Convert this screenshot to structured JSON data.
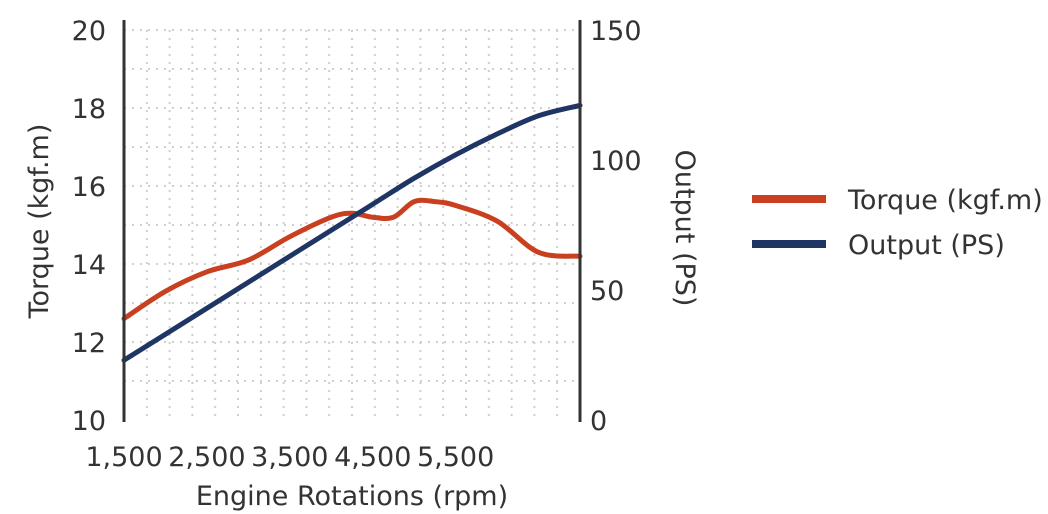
{
  "chart_data": {
    "type": "line",
    "xlabel": "Engine Rotations (rpm)",
    "ylabel_left": "Torque (kgf.m)",
    "ylabel_right": "Output (PS)",
    "xlim": [
      1500,
      7000
    ],
    "ylim_left": [
      10,
      20
    ],
    "ylim_right": [
      0,
      150
    ],
    "x_ticks": [
      1500,
      2500,
      3500,
      4500,
      5500
    ],
    "x_tick_labels": [
      "1,500",
      "2,500",
      "3,500",
      "4,500",
      "5,500"
    ],
    "y_left_ticks": [
      10,
      12,
      14,
      16,
      18,
      20
    ],
    "y_left_tick_labels": [
      "10",
      "12",
      "14",
      "16",
      "18",
      "20"
    ],
    "y_right_ticks": [
      0,
      50,
      100,
      150
    ],
    "y_right_tick_labels": [
      "0",
      "50",
      "100",
      "150"
    ],
    "grid": true,
    "legend_position": "right",
    "series": [
      {
        "name": "Torque (kgf.m)",
        "axis": "left",
        "color": "#c8401f",
        "x": [
          1500,
          2000,
          2500,
          3000,
          3500,
          4000,
          4250,
          4500,
          4750,
          5000,
          5250,
          5500,
          6000,
          6500,
          7000
        ],
        "y": [
          12.6,
          13.3,
          13.8,
          14.1,
          14.7,
          15.2,
          15.3,
          15.2,
          15.2,
          15.6,
          15.6,
          15.5,
          15.1,
          14.3,
          14.2
        ]
      },
      {
        "name": "Output (PS)",
        "axis": "right",
        "color": "#1f3564",
        "x": [
          1500,
          2000,
          2500,
          3000,
          3500,
          4000,
          4500,
          5000,
          5500,
          6000,
          6500,
          7000
        ],
        "y": [
          23,
          33,
          43,
          53,
          63,
          73,
          83,
          93,
          102,
          110,
          117,
          121
        ]
      }
    ]
  }
}
